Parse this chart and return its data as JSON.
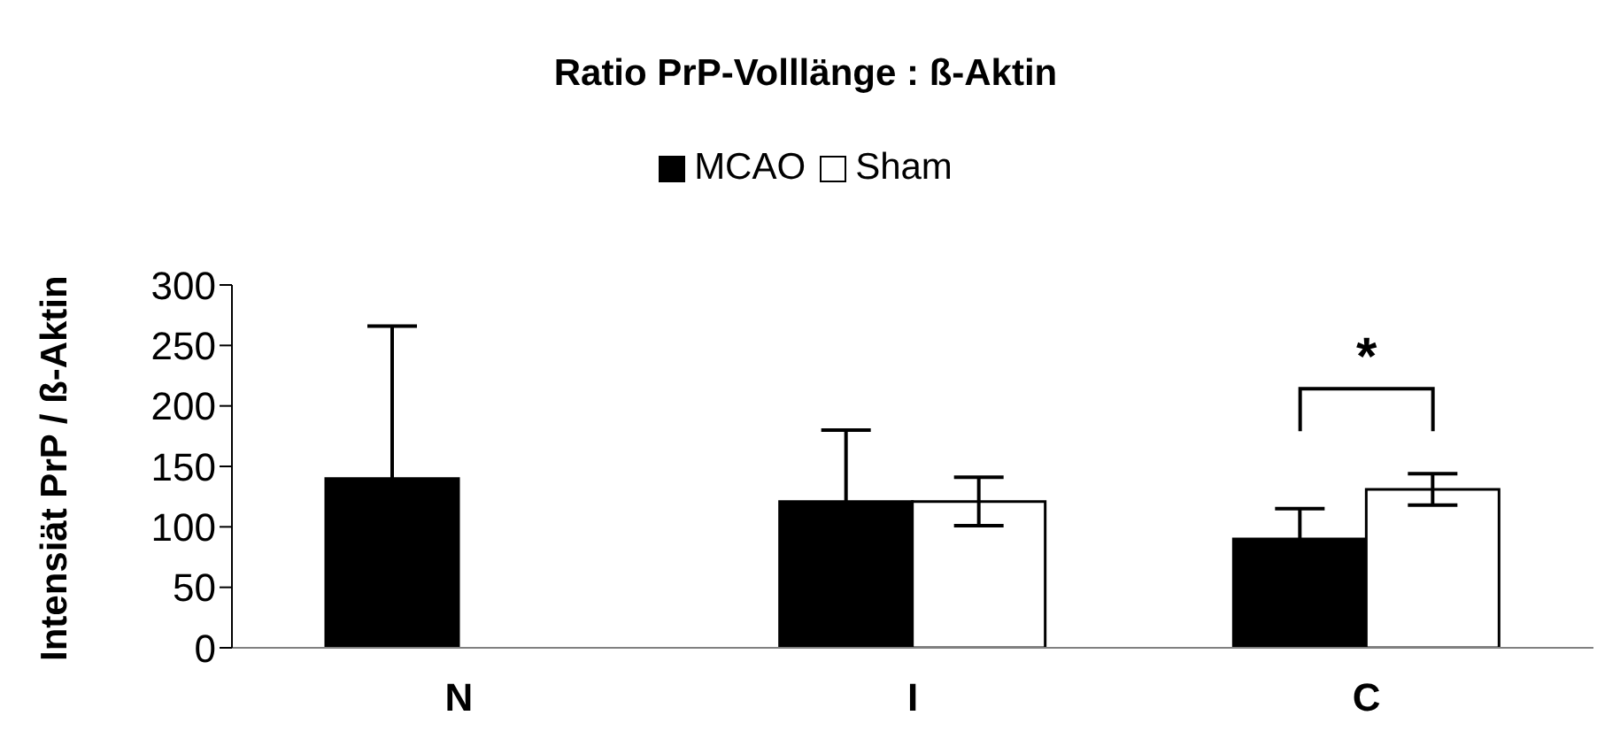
{
  "chart_data": {
    "type": "bar",
    "title": "Ratio PrP-Volllänge : ß-Aktin",
    "ylabel": "Intensiät PrP / ß-Aktin",
    "categories": [
      "N",
      "I",
      "C"
    ],
    "series": [
      {
        "name": "MCAO",
        "color": "#000000",
        "values": [
          140,
          121,
          90
        ],
        "errors": [
          126,
          59,
          25
        ]
      },
      {
        "name": "Sham",
        "color": "#ffffff",
        "values": [
          0,
          121,
          131
        ],
        "errors": [
          null,
          20,
          13
        ]
      }
    ],
    "ylim": [
      0,
      300
    ],
    "yticks": [
      0,
      50,
      100,
      150,
      200,
      250,
      300
    ],
    "grid": false,
    "legend": "top",
    "annotations": [
      "*"
    ]
  }
}
